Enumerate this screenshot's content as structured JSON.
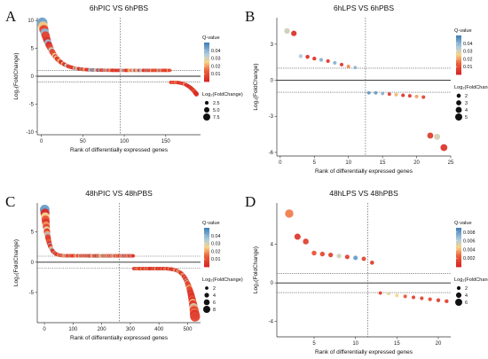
{
  "chart_data": [
    {
      "letter": "A",
      "type": "scatter",
      "title": "6hPIC VS 6hPBS",
      "xlabel": "Rank of differentially expressed genes",
      "ylabel": "Log₂(FoldChange)",
      "xlim": [
        -5,
        192
      ],
      "ylim": [
        -10.5,
        10.5
      ],
      "xticks": [
        0,
        50,
        100,
        150
      ],
      "yticks": [
        -10,
        -5,
        0,
        5,
        10
      ],
      "vline": 95,
      "hlines_dotted": [
        1,
        -1
      ],
      "legend": {
        "color_title": "Q-value",
        "color_ticks": [
          0.01,
          0.02,
          0.03,
          0.04
        ],
        "color_range": [
          0.0,
          0.05
        ],
        "size_title": "Log₂(FoldChange)",
        "size_ticks": [
          "2.5",
          "5.0",
          "7.5"
        ],
        "size_values": [
          2.5,
          5.0,
          7.5
        ]
      },
      "size_range": [
        1,
        9.5
      ],
      "up": {
        "n": 155,
        "x_start": 1,
        "x_end": 155,
        "y_start": 9.6,
        "y_end": 1.05,
        "decay": 12,
        "q": "mixed"
      },
      "down": {
        "n": 32,
        "x_start": 156,
        "x_end": 187,
        "y_start": -1.1,
        "y_end": -3.2,
        "curve": 3
      }
    },
    {
      "letter": "B",
      "type": "scatter",
      "title": "6hLPS VS 6hPBS",
      "xlabel": "Rank of differentially expressed genes",
      "ylabel": "Log₂(FoldChange)",
      "xlim": [
        -0.5,
        25
      ],
      "ylim": [
        -6.3,
        5.2
      ],
      "xticks": [
        0,
        5,
        10,
        15,
        20,
        25
      ],
      "yticks": [
        -6,
        -3,
        0,
        3
      ],
      "vline": 12.5,
      "hlines_dotted": [
        1,
        -1
      ],
      "legend": {
        "color_title": "Q-value",
        "color_ticks": [
          0.01,
          0.02,
          0.03,
          0.04
        ],
        "color_range": [
          0.0,
          0.05
        ],
        "size_title": "Log₂(FoldChange)",
        "size_ticks": [
          "2",
          "3",
          "4",
          "5"
        ],
        "size_values": [
          2,
          3,
          4,
          5
        ]
      },
      "size_range": [
        1,
        5.6
      ],
      "points": [
        {
          "x": 1,
          "y": 4.1,
          "q": 0.031
        },
        {
          "x": 2,
          "y": 3.9,
          "q": 0.003
        },
        {
          "x": 3,
          "y": 2.0,
          "q": 0.035
        },
        {
          "x": 4,
          "y": 1.95,
          "q": 0.003
        },
        {
          "x": 5,
          "y": 1.8,
          "q": 0.004
        },
        {
          "x": 6,
          "y": 1.7,
          "q": 0.04
        },
        {
          "x": 7,
          "y": 1.6,
          "q": 0.005
        },
        {
          "x": 8,
          "y": 1.45,
          "q": 0.04
        },
        {
          "x": 9,
          "y": 1.3,
          "q": 0.004
        },
        {
          "x": 10,
          "y": 1.15,
          "q": 0.018
        },
        {
          "x": 11,
          "y": 1.05,
          "q": 0.04
        },
        {
          "x": 13,
          "y": -1.05,
          "q": 0.045
        },
        {
          "x": 14,
          "y": -1.05,
          "q": 0.045
        },
        {
          "x": 15,
          "y": -1.1,
          "q": 0.04
        },
        {
          "x": 16,
          "y": -1.15,
          "q": 0.006
        },
        {
          "x": 17,
          "y": -1.2,
          "q": 0.022
        },
        {
          "x": 18,
          "y": -1.25,
          "q": 0.004
        },
        {
          "x": 19,
          "y": -1.3,
          "q": 0.005
        },
        {
          "x": 20,
          "y": -1.35,
          "q": 0.02
        },
        {
          "x": 21,
          "y": -1.4,
          "q": 0.008
        },
        {
          "x": 22,
          "y": -4.6,
          "q": 0.006
        },
        {
          "x": 23,
          "y": -4.7,
          "q": 0.03
        },
        {
          "x": 24,
          "y": -5.6,
          "q": 0.004
        }
      ]
    },
    {
      "letter": "C",
      "type": "scatter",
      "title": "48hPIC VS 48hPBS",
      "xlabel": "Rank of differentially expressed genes",
      "ylabel": "Log₂(FoldChange)",
      "xlim": [
        -25,
        545
      ],
      "ylim": [
        -10,
        9.8
      ],
      "xticks": [
        0,
        100,
        200,
        300,
        400,
        500
      ],
      "yticks": [
        -5,
        0,
        5
      ],
      "vline": 262,
      "hlines_dotted": [
        1,
        -1
      ],
      "legend": {
        "color_title": "Q-value",
        "color_ticks": [
          0.01,
          0.02,
          0.03,
          0.04
        ],
        "color_range": [
          0.0,
          0.05
        ],
        "size_title": "Log₂(FoldChange)",
        "size_ticks": [
          "2",
          "4",
          "6",
          "8"
        ],
        "size_values": [
          2,
          4,
          6,
          8
        ]
      },
      "size_range": [
        1,
        9
      ],
      "up": {
        "n": 310,
        "x_start": 1,
        "x_end": 310,
        "y_start": 8.7,
        "y_end": 1.05,
        "decay": 25,
        "q": "mixed"
      },
      "down": {
        "n": 215,
        "x_start": 312,
        "x_end": 526,
        "y_start": -1.05,
        "y_end": -9.0,
        "curve": 9
      }
    },
    {
      "letter": "D",
      "type": "scatter",
      "title": "48hLPS VS 48hPBS",
      "xlabel": "Rank of differentially expressed genes",
      "ylabel": "Log₂(FoldChange)",
      "xlim": [
        0.5,
        21.5
      ],
      "ylim": [
        -5.6,
        8.3
      ],
      "xticks": [
        5,
        10,
        15,
        20
      ],
      "yticks": [
        -4,
        0,
        4
      ],
      "vline": 11.5,
      "hlines_dotted": [
        1,
        -1
      ],
      "legend": {
        "color_title": "Q-value",
        "color_ticks": [
          0.002,
          0.004,
          0.006,
          0.008
        ],
        "color_range": [
          0.0,
          0.009
        ],
        "size_title": "Log₂(FoldChange)",
        "size_ticks": [
          "2",
          "4",
          "6"
        ],
        "size_values": [
          2,
          4,
          6
        ]
      },
      "size_range": [
        1,
        7.2
      ],
      "points": [
        {
          "x": 2,
          "y": 7.2,
          "q": 0.003
        },
        {
          "x": 3,
          "y": 4.8,
          "q": 0.0008
        },
        {
          "x": 4,
          "y": 4.3,
          "q": 0.0012
        },
        {
          "x": 5,
          "y": 3.1,
          "q": 0.002
        },
        {
          "x": 6,
          "y": 3.0,
          "q": 0.0015
        },
        {
          "x": 7,
          "y": 2.9,
          "q": 0.0012
        },
        {
          "x": 8,
          "y": 2.8,
          "q": 0.0055
        },
        {
          "x": 9,
          "y": 2.7,
          "q": 0.0012
        },
        {
          "x": 10,
          "y": 2.6,
          "q": 0.008
        },
        {
          "x": 11,
          "y": 2.5,
          "q": 0.0015
        },
        {
          "x": 12,
          "y": 2.1,
          "q": 0.001
        },
        {
          "x": 13,
          "y": -1.05,
          "q": 0.001
        },
        {
          "x": 14,
          "y": -1.1,
          "q": 0.005
        },
        {
          "x": 15,
          "y": -1.3,
          "q": 0.0045
        },
        {
          "x": 16,
          "y": -1.4,
          "q": 0.002
        },
        {
          "x": 17,
          "y": -1.5,
          "q": 0.0012
        },
        {
          "x": 18,
          "y": -1.6,
          "q": 0.0014
        },
        {
          "x": 19,
          "y": -1.7,
          "q": 0.0016
        },
        {
          "x": 20,
          "y": -1.8,
          "q": 0.0011
        },
        {
          "x": 21,
          "y": -1.9,
          "q": 0.0012
        }
      ]
    }
  ]
}
